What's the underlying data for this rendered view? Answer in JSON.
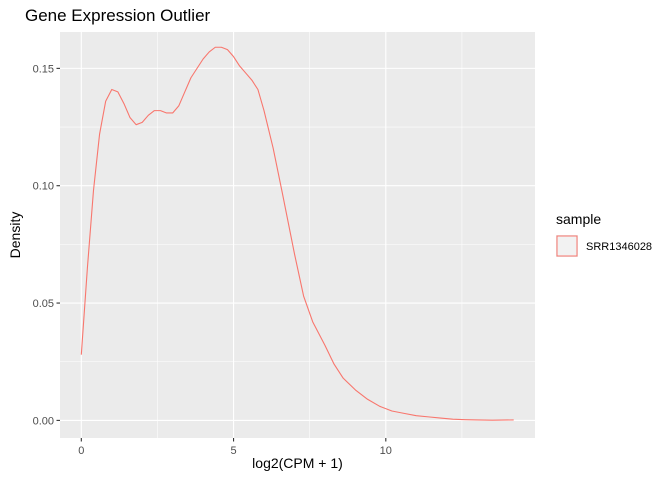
{
  "chart_data": {
    "type": "line",
    "title": "Gene Expression Outlier",
    "xlabel": "log2(CPM + 1)",
    "ylabel": "Density",
    "xlim": [
      -0.7,
      14.9
    ],
    "ylim": [
      -0.0075,
      0.1655
    ],
    "x_ticks": [
      0,
      5,
      10
    ],
    "x_tick_labels": [
      "0",
      "5",
      "10"
    ],
    "x_minor_ticks": [
      2.5,
      7.5,
      12.5
    ],
    "y_ticks": [
      0.0,
      0.05,
      0.1,
      0.15
    ],
    "y_tick_labels": [
      "0.00",
      "0.05",
      "0.10",
      "0.15"
    ],
    "y_minor_ticks": [
      0.025,
      0.075,
      0.125
    ],
    "grid": true,
    "legend": {
      "title": "sample",
      "position": "right"
    },
    "series": [
      {
        "name": "SRR1346028",
        "color": "#F8766D",
        "x": [
          0.0,
          0.2,
          0.4,
          0.6,
          0.8,
          1.0,
          1.2,
          1.4,
          1.6,
          1.8,
          2.0,
          2.2,
          2.4,
          2.6,
          2.8,
          3.0,
          3.2,
          3.4,
          3.6,
          3.8,
          4.0,
          4.2,
          4.4,
          4.6,
          4.8,
          5.0,
          5.2,
          5.4,
          5.6,
          5.8,
          6.0,
          6.3,
          6.6,
          7.0,
          7.3,
          7.6,
          8.0,
          8.3,
          8.6,
          9.0,
          9.4,
          9.8,
          10.2,
          10.6,
          11.0,
          11.4,
          11.8,
          12.2,
          12.6,
          13.0,
          13.5,
          14.2
        ],
        "y": [
          0.028,
          0.065,
          0.098,
          0.122,
          0.136,
          0.141,
          0.14,
          0.135,
          0.129,
          0.126,
          0.127,
          0.13,
          0.132,
          0.132,
          0.131,
          0.131,
          0.134,
          0.14,
          0.146,
          0.15,
          0.154,
          0.157,
          0.159,
          0.159,
          0.158,
          0.155,
          0.151,
          0.148,
          0.145,
          0.141,
          0.132,
          0.116,
          0.097,
          0.071,
          0.053,
          0.042,
          0.032,
          0.024,
          0.018,
          0.013,
          0.009,
          0.006,
          0.004,
          0.003,
          0.002,
          0.0015,
          0.001,
          0.0005,
          0.0003,
          0.0002,
          0.0001,
          0.0002
        ]
      }
    ]
  }
}
